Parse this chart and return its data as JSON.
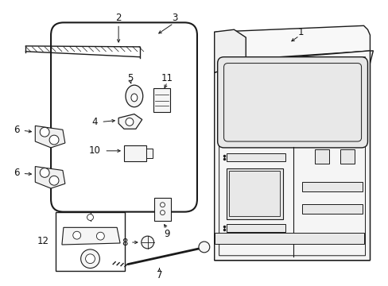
{
  "bg_color": "#ffffff",
  "fig_width": 4.89,
  "fig_height": 3.6,
  "dpi": 100,
  "line_color": "#1a1a1a",
  "text_color": "#111111"
}
